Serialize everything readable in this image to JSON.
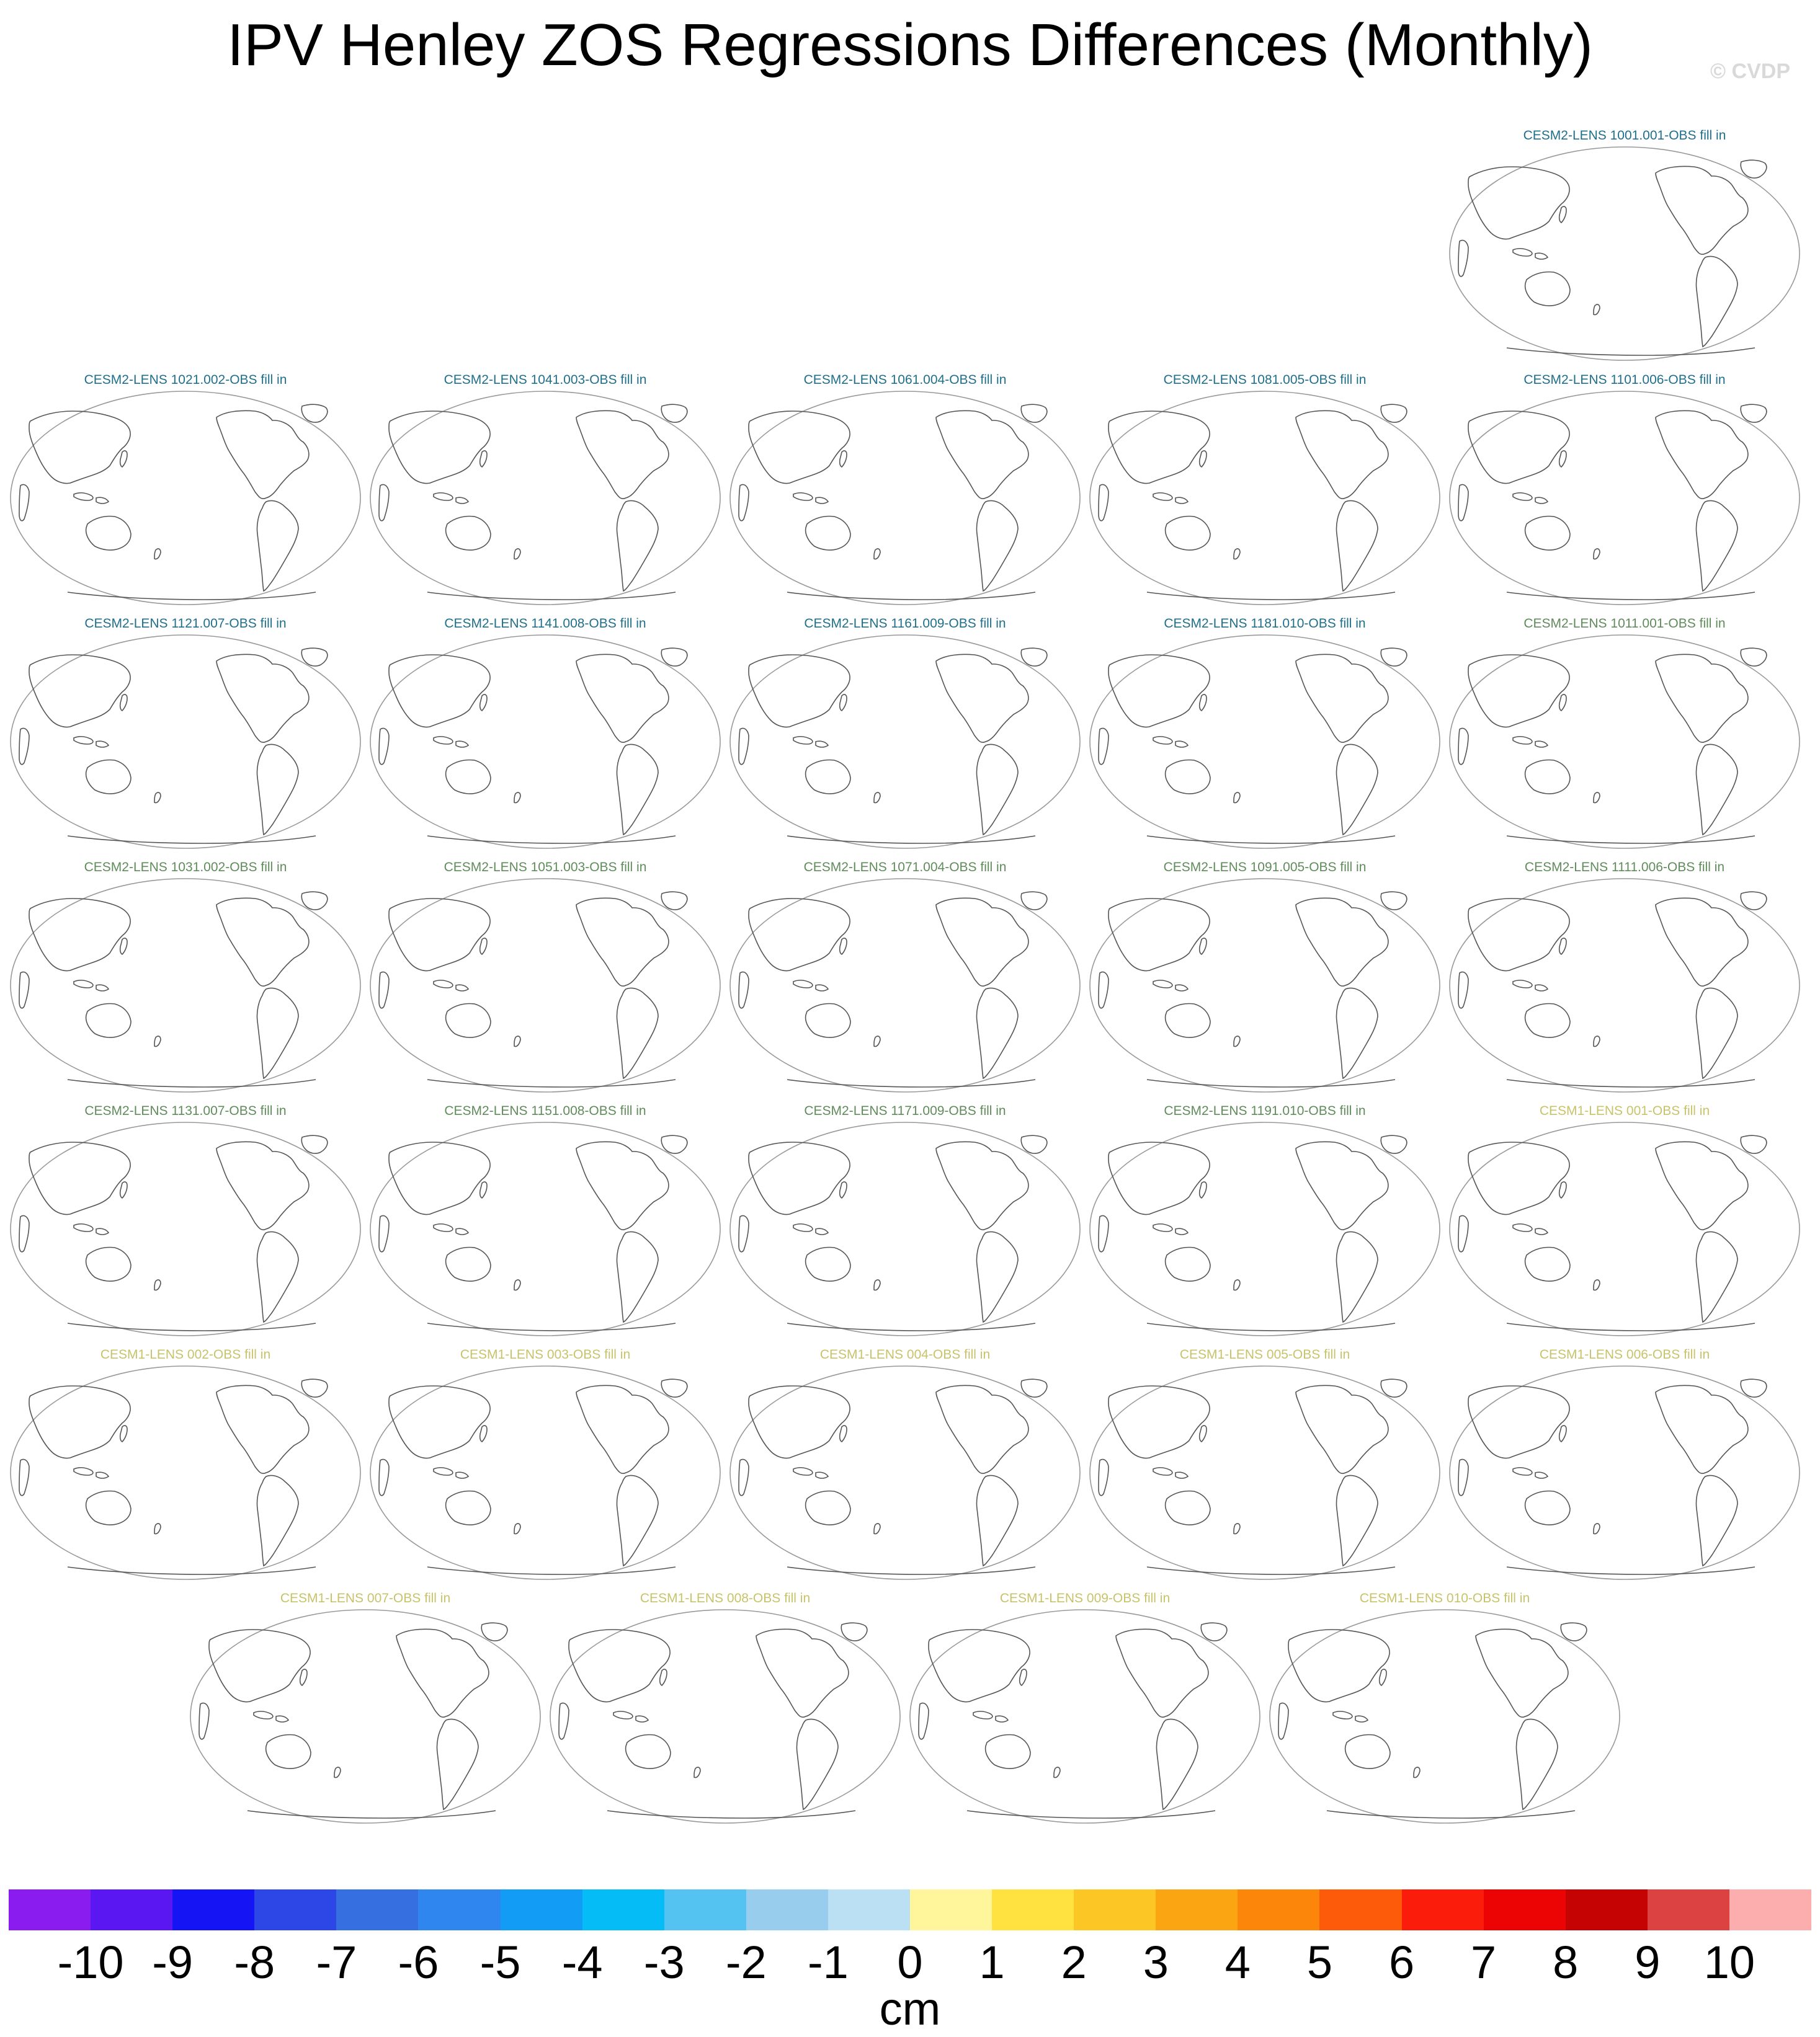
{
  "title": "IPV Henley ZOS Regressions Differences (Monthly)",
  "copyright": "© CVDP",
  "colors": {
    "cesm2_first": "#1f6f8b",
    "cesm2_second": "#5f8c5a",
    "cesm1": "#c8c36a",
    "coastline": "#555555",
    "map_border": "#999999"
  },
  "panels": [
    {
      "label": "CESM2-LENS 1001.001-OBS fill in",
      "group": "cesm2_first"
    },
    {
      "label": "CESM2-LENS 1021.002-OBS fill in",
      "group": "cesm2_first"
    },
    {
      "label": "CESM2-LENS 1041.003-OBS fill in",
      "group": "cesm2_first"
    },
    {
      "label": "CESM2-LENS 1061.004-OBS fill in",
      "group": "cesm2_first"
    },
    {
      "label": "CESM2-LENS 1081.005-OBS fill in",
      "group": "cesm2_first"
    },
    {
      "label": "CESM2-LENS 1101.006-OBS fill in",
      "group": "cesm2_first"
    },
    {
      "label": "CESM2-LENS 1121.007-OBS fill in",
      "group": "cesm2_first"
    },
    {
      "label": "CESM2-LENS 1141.008-OBS fill in",
      "group": "cesm2_first"
    },
    {
      "label": "CESM2-LENS 1161.009-OBS fill in",
      "group": "cesm2_first"
    },
    {
      "label": "CESM2-LENS 1181.010-OBS fill in",
      "group": "cesm2_first"
    },
    {
      "label": "CESM2-LENS 1011.001-OBS fill in",
      "group": "cesm2_second"
    },
    {
      "label": "CESM2-LENS 1031.002-OBS fill in",
      "group": "cesm2_second"
    },
    {
      "label": "CESM2-LENS 1051.003-OBS fill in",
      "group": "cesm2_second"
    },
    {
      "label": "CESM2-LENS 1071.004-OBS fill in",
      "group": "cesm2_second"
    },
    {
      "label": "CESM2-LENS 1091.005-OBS fill in",
      "group": "cesm2_second"
    },
    {
      "label": "CESM2-LENS 1111.006-OBS fill in",
      "group": "cesm2_second"
    },
    {
      "label": "CESM2-LENS 1131.007-OBS fill in",
      "group": "cesm2_second"
    },
    {
      "label": "CESM2-LENS 1151.008-OBS fill in",
      "group": "cesm2_second"
    },
    {
      "label": "CESM2-LENS 1171.009-OBS fill in",
      "group": "cesm2_second"
    },
    {
      "label": "CESM2-LENS 1191.010-OBS fill in",
      "group": "cesm2_second"
    },
    {
      "label": "CESM1-LENS 001-OBS fill in",
      "group": "cesm1"
    },
    {
      "label": "CESM1-LENS 002-OBS fill in",
      "group": "cesm1"
    },
    {
      "label": "CESM1-LENS 003-OBS fill in",
      "group": "cesm1"
    },
    {
      "label": "CESM1-LENS 004-OBS fill in",
      "group": "cesm1"
    },
    {
      "label": "CESM1-LENS 005-OBS fill in",
      "group": "cesm1"
    },
    {
      "label": "CESM1-LENS 006-OBS fill in",
      "group": "cesm1"
    },
    {
      "label": "CESM1-LENS 007-OBS fill in",
      "group": "cesm1"
    },
    {
      "label": "CESM1-LENS 008-OBS fill in",
      "group": "cesm1"
    },
    {
      "label": "CESM1-LENS 009-OBS fill in",
      "group": "cesm1"
    },
    {
      "label": "CESM1-LENS 010-OBS fill in",
      "group": "cesm1"
    }
  ],
  "colorbar": {
    "units": "cm",
    "labels": [
      "-10",
      "-9",
      "-8",
      "-7",
      "-6",
      "-5",
      "-4",
      "-3",
      "-2",
      "-1",
      "0",
      "1",
      "2",
      "3",
      "4",
      "5",
      "6",
      "7",
      "8",
      "9",
      "10"
    ],
    "colors": [
      "#8a1cf0",
      "#5a17f2",
      "#1414f5",
      "#2d47e6",
      "#356fe0",
      "#2e86ee",
      "#129cf5",
      "#05bcf7",
      "#55c3f2",
      "#99cdee",
      "#bbe0f4",
      "#fff59a",
      "#ffe23f",
      "#fcc624",
      "#fba512",
      "#fc860a",
      "#fd5a0a",
      "#fc1c0b",
      "#ec0404",
      "#c60303",
      "#dd4242",
      "#fcaeae"
    ]
  }
}
